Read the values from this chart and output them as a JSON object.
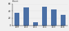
{
  "categories": [
    "2009",
    "2010",
    "2011",
    "2012",
    "2013",
    "2014"
  ],
  "values": [
    35,
    50,
    8,
    52,
    45,
    30
  ],
  "bar_color": "#4a6fa5",
  "ylim": [
    0,
    60
  ],
  "ytick_values": [
    0,
    20,
    40,
    60
  ],
  "background_color": "#f0f0f0",
  "bar_width": 0.55,
  "figsize": [
    1.0,
    0.46
  ],
  "dpi": 100
}
